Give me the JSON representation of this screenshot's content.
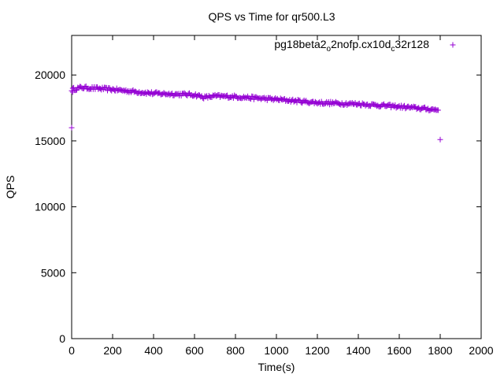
{
  "chart_data": {
    "type": "scatter",
    "title": "QPS vs Time for qr500.L3",
    "xlabel": "Time(s)",
    "ylabel": "QPS",
    "xlim": [
      0,
      2000
    ],
    "ylim": [
      0,
      23000
    ],
    "xticks": [
      0,
      200,
      400,
      600,
      800,
      1000,
      1200,
      1400,
      1600,
      1800,
      2000
    ],
    "yticks": [
      0,
      5000,
      10000,
      15000,
      20000
    ],
    "grid": false,
    "legend_position": "top-right",
    "series": [
      {
        "name": "pg18beta2_o2nofp.cx10d_c32r128",
        "name_parts": [
          {
            "text": "pg18beta2",
            "sub": false
          },
          {
            "text": "o",
            "sub": true
          },
          {
            "text": "2nofp.cx10d",
            "sub": false
          },
          {
            "text": "c",
            "sub": true
          },
          {
            "text": "32r128",
            "sub": false
          }
        ],
        "color": "#9400d3",
        "marker": "plus",
        "trend": {
          "x": [
            0,
            50,
            200,
            400,
            600,
            650,
            700,
            800,
            1000,
            1200,
            1400,
            1600,
            1790
          ],
          "y": [
            18900,
            19050,
            18900,
            18600,
            18500,
            18300,
            18400,
            18350,
            18150,
            17900,
            17800,
            17600,
            17350
          ]
        },
        "noise": 120,
        "x_step": 5,
        "outliers": [
          {
            "x": 0,
            "y": 16000
          },
          {
            "x": 5,
            "y": 18700
          },
          {
            "x": 1800,
            "y": 15100
          }
        ]
      }
    ]
  }
}
